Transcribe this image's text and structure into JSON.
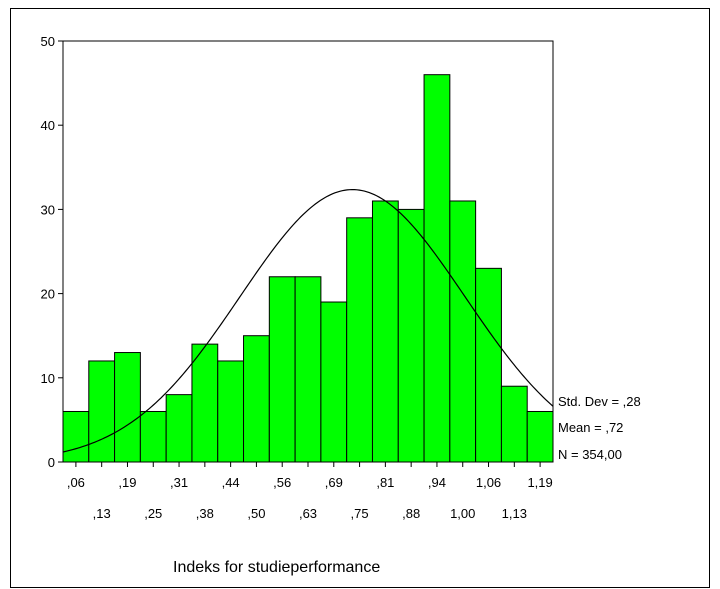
{
  "chart_data": {
    "type": "bar",
    "variant": "histogram",
    "title": "",
    "xlabel": "Indeks for studieperformance",
    "ylabel": "",
    "ylim": [
      0,
      50
    ],
    "y_ticks": [
      0,
      10,
      20,
      30,
      40,
      50
    ],
    "grid": false,
    "categories": [
      ",06",
      ",13",
      ",19",
      ",25",
      ",31",
      ",38",
      ",44",
      ",50",
      ",56",
      ",63",
      ",69",
      ",75",
      ",81",
      ",88",
      ",94",
      "1,00",
      "1,06",
      "1,13",
      "1,19"
    ],
    "values": [
      6,
      12,
      13,
      6,
      8,
      14,
      12,
      15,
      22,
      22,
      19,
      29,
      31,
      30,
      46,
      31,
      23,
      9,
      6
    ],
    "bar_color": "#00ff00",
    "normal_curve": {
      "mean": 0.72,
      "std_dev": 0.28,
      "n": 354
    },
    "stats": {
      "std_dev_label": "Std. Dev = ,28",
      "mean_label": "Mean = ,72",
      "n_label": "N = 354,00"
    }
  }
}
